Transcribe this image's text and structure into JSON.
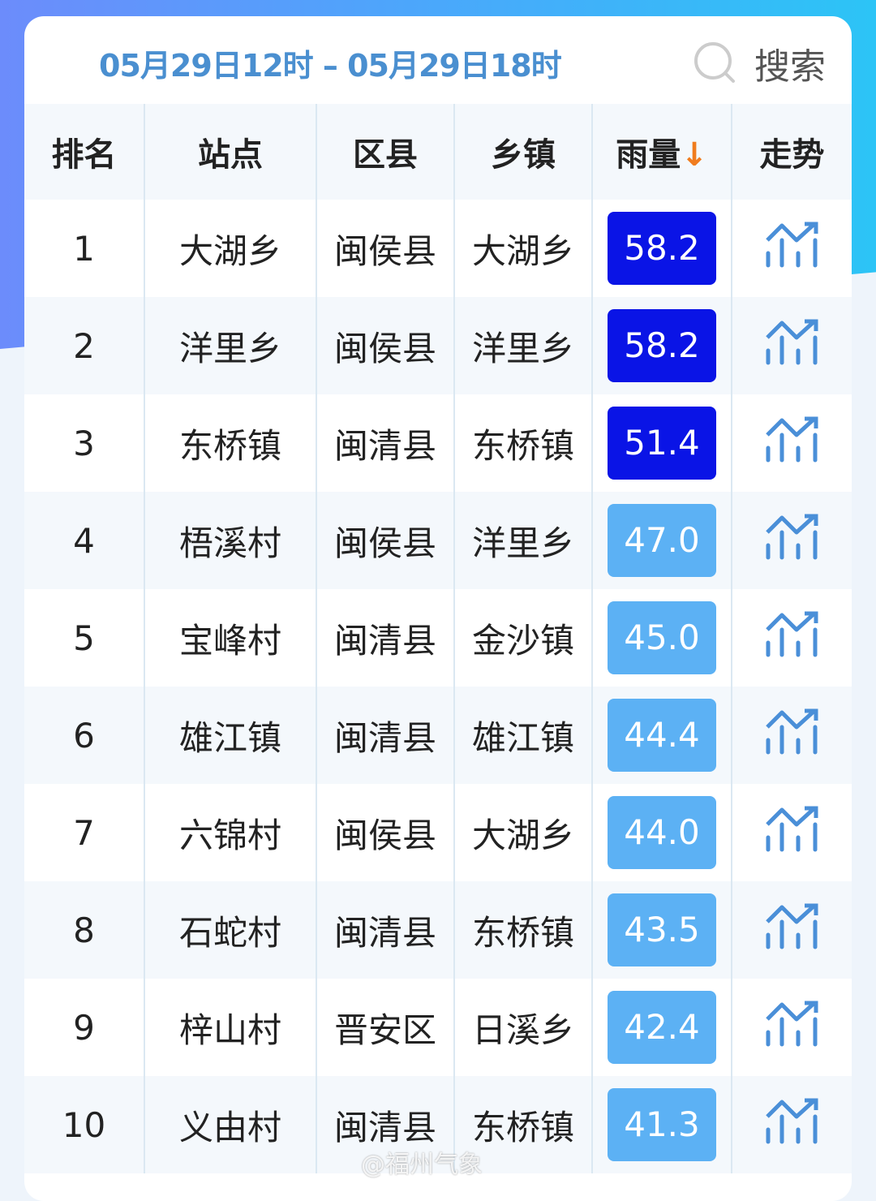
{
  "header": {
    "time_range": "05月29日12时 – 05月29日18时",
    "search_label": "搜索",
    "search_icon": "search-icon"
  },
  "columns": [
    "排名",
    "站点",
    "区县",
    "乡镇",
    "雨量",
    "走势"
  ],
  "sort_indicator": "↓",
  "colors": {
    "heavy": "#0a14e6",
    "moderate": "#5cb1f4",
    "sort_arrow": "#f07c1e",
    "accent": "#4a8fd0"
  },
  "rows": [
    {
      "rank": "1",
      "station": "大湖乡",
      "county": "闽侯县",
      "town": "大湖乡",
      "rain": "58.2",
      "level": "heavy"
    },
    {
      "rank": "2",
      "station": "洋里乡",
      "county": "闽侯县",
      "town": "洋里乡",
      "rain": "58.2",
      "level": "heavy"
    },
    {
      "rank": "3",
      "station": "东桥镇",
      "county": "闽清县",
      "town": "东桥镇",
      "rain": "51.4",
      "level": "heavy"
    },
    {
      "rank": "4",
      "station": "梧溪村",
      "county": "闽侯县",
      "town": "洋里乡",
      "rain": "47.0",
      "level": "moderate"
    },
    {
      "rank": "5",
      "station": "宝峰村",
      "county": "闽清县",
      "town": "金沙镇",
      "rain": "45.0",
      "level": "moderate"
    },
    {
      "rank": "6",
      "station": "雄江镇",
      "county": "闽清县",
      "town": "雄江镇",
      "rain": "44.4",
      "level": "moderate"
    },
    {
      "rank": "7",
      "station": "六锦村",
      "county": "闽侯县",
      "town": "大湖乡",
      "rain": "44.0",
      "level": "moderate"
    },
    {
      "rank": "8",
      "station": "石蛇村",
      "county": "闽清县",
      "town": "东桥镇",
      "rain": "43.5",
      "level": "moderate"
    },
    {
      "rank": "9",
      "station": "梓山村",
      "county": "晋安区",
      "town": "日溪乡",
      "rain": "42.4",
      "level": "moderate"
    },
    {
      "rank": "10",
      "station": "义由村",
      "county": "闽清县",
      "town": "东桥镇",
      "rain": "41.3",
      "level": "moderate"
    }
  ],
  "watermark": "@福州气象"
}
